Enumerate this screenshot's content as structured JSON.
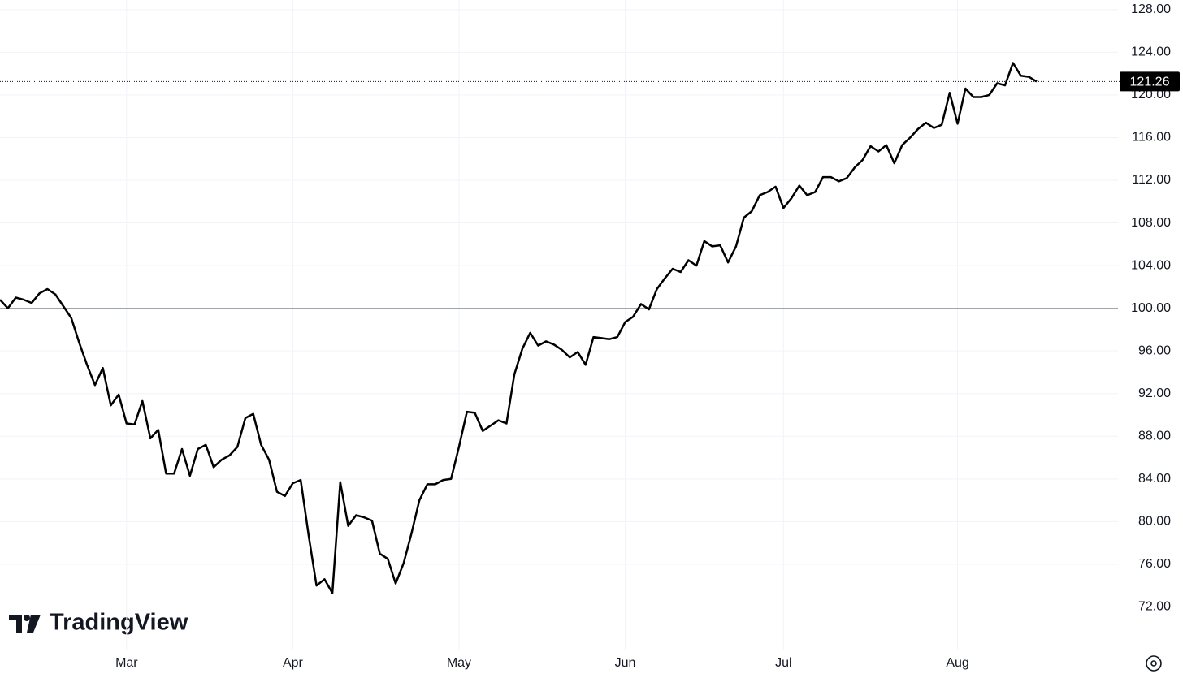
{
  "chart_data": {
    "type": "line",
    "watermark": "TradingView",
    "categories": [
      null,
      null,
      null,
      null,
      null,
      null,
      null,
      null,
      null,
      null,
      null,
      null,
      null,
      null,
      null,
      null,
      "Mar",
      null,
      null,
      null,
      null,
      null,
      null,
      null,
      null,
      null,
      null,
      null,
      null,
      null,
      null,
      null,
      null,
      null,
      null,
      null,
      null,
      "Apr",
      null,
      null,
      null,
      null,
      null,
      null,
      null,
      null,
      null,
      null,
      null,
      null,
      null,
      null,
      null,
      null,
      null,
      null,
      null,
      null,
      "May",
      null,
      null,
      null,
      null,
      null,
      null,
      null,
      null,
      null,
      null,
      null,
      null,
      null,
      null,
      null,
      null,
      null,
      null,
      null,
      null,
      "Jun",
      null,
      null,
      null,
      null,
      null,
      null,
      null,
      null,
      null,
      null,
      null,
      null,
      null,
      null,
      null,
      null,
      null,
      null,
      null,
      "Jul",
      null,
      null,
      null,
      null,
      null,
      null,
      null,
      null,
      null,
      null,
      null,
      null,
      null,
      null,
      null,
      null,
      null,
      null,
      null,
      null,
      null,
      "Aug",
      null,
      null,
      null,
      null,
      null,
      null,
      null,
      null,
      null,
      null
    ],
    "series": [
      {
        "color": "#000000",
        "values": [
          100.8,
          100.0,
          101.0,
          100.8,
          100.5,
          101.4,
          101.8,
          101.3,
          100.2,
          99.1,
          96.8,
          94.7,
          92.8,
          94.4,
          90.9,
          91.9,
          89.2,
          89.1,
          91.3,
          87.8,
          88.6,
          84.5,
          84.5,
          86.8,
          84.3,
          86.8,
          87.2,
          85.1,
          85.8,
          86.2,
          87.0,
          89.7,
          90.1,
          87.2,
          85.8,
          82.8,
          82.4,
          83.6,
          83.9,
          78.7,
          74.0,
          74.6,
          73.3,
          83.7,
          79.6,
          80.6,
          80.4,
          80.1,
          77.0,
          76.5,
          74.2,
          76.1,
          78.9,
          82.0,
          83.5,
          83.5,
          83.9,
          84.0,
          87.0,
          90.3,
          90.2,
          88.5,
          89.0,
          89.5,
          89.2,
          93.8,
          96.2,
          97.7,
          96.5,
          96.9,
          96.6,
          96.1,
          95.4,
          95.9,
          94.7,
          97.3,
          97.2,
          97.1,
          97.3,
          98.7,
          99.2,
          100.4,
          99.9,
          101.8,
          102.8,
          103.7,
          103.4,
          104.5,
          104.0,
          106.3,
          105.8,
          105.9,
          104.3,
          105.8,
          108.5,
          109.1,
          110.6,
          110.9,
          111.4,
          109.4,
          110.3,
          111.5,
          110.6,
          110.9,
          112.3,
          112.3,
          111.9,
          112.2,
          113.2,
          113.9,
          115.2,
          114.7,
          115.3,
          113.6,
          115.3,
          116.0,
          116.8,
          117.4,
          116.9,
          117.2,
          120.2,
          117.3,
          120.6,
          119.8,
          119.8,
          120.0,
          121.1,
          120.9,
          123.0,
          121.8,
          121.7,
          121.26
        ]
      }
    ],
    "baseline": 100,
    "ylim": [
      68,
      128.9
    ],
    "yticks": [
      {
        "value": 72,
        "label": "72.00"
      },
      {
        "value": 76,
        "label": "76.00"
      },
      {
        "value": 80,
        "label": "80.00"
      },
      {
        "value": 84,
        "label": "84.00"
      },
      {
        "value": 88,
        "label": "88.00"
      },
      {
        "value": 92,
        "label": "92.00"
      },
      {
        "value": 96,
        "label": "96.00"
      },
      {
        "value": 100,
        "label": "100.00"
      },
      {
        "value": 104,
        "label": "104.00"
      },
      {
        "value": 108,
        "label": "108.00"
      },
      {
        "value": 112,
        "label": "112.00"
      },
      {
        "value": 116,
        "label": "116.00"
      },
      {
        "value": 120,
        "label": "120.00"
      },
      {
        "value": 124,
        "label": "124.00"
      },
      {
        "value": 128,
        "label": "128.00"
      }
    ],
    "grid": true
  }
}
